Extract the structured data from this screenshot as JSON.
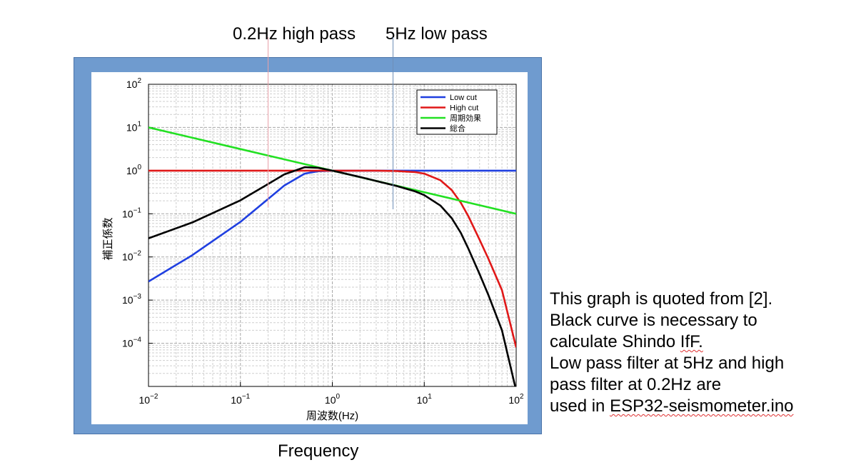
{
  "annotations": {
    "high_pass_label": "0.2Hz high pass",
    "low_pass_label": "5Hz low pass",
    "frequency_label": "Frequency",
    "note": {
      "line1": "This graph is quoted from [2].",
      "line2": "Black curve is necessary to",
      "line3_pre": "calculate Shindo ",
      "line3_err": "IfF.",
      "line4": "Low pass filter at 5Hz and  high",
      "line5": "pass filter at 0.2Hz are",
      "line6_pre": "used in ",
      "line6_err": "ESP32-seismometer.ino"
    },
    "high_pass_freq": 0.2,
    "low_pass_freq": 4.6,
    "high_pass_line_color": "#e8a0a8",
    "low_pass_line_color": "#6f8fb8",
    "frame_color": "#6f9bcf"
  },
  "chart_data": {
    "type": "line",
    "xscale": "log",
    "yscale": "log",
    "xlim": [
      0.01,
      100
    ],
    "ylim": [
      1e-05,
      100
    ],
    "xlabel": "周波数(Hz)",
    "ylabel": "補正係数",
    "grid": true,
    "legend_position": "top-right",
    "x_ticks": [
      {
        "value": 0.01,
        "base": "10",
        "exp": "−2"
      },
      {
        "value": 0.1,
        "base": "10",
        "exp": "−1"
      },
      {
        "value": 1,
        "base": "10",
        "exp": "0"
      },
      {
        "value": 10,
        "base": "10",
        "exp": "1"
      },
      {
        "value": 100,
        "base": "10",
        "exp": "2"
      }
    ],
    "y_ticks": [
      {
        "value": 100,
        "base": "10",
        "exp": "2"
      },
      {
        "value": 10,
        "base": "10",
        "exp": "1"
      },
      {
        "value": 1,
        "base": "10",
        "exp": "0"
      },
      {
        "value": 0.1,
        "base": "10",
        "exp": "−1"
      },
      {
        "value": 0.01,
        "base": "10",
        "exp": "−2"
      },
      {
        "value": 0.001,
        "base": "10",
        "exp": "−3"
      },
      {
        "value": 0.0001,
        "base": "10",
        "exp": "−4"
      }
    ],
    "series": [
      {
        "name": "Low cut",
        "color": "#1f3fe0",
        "x": [
          0.01,
          0.03,
          0.1,
          0.2,
          0.3,
          0.5,
          0.7,
          1,
          2,
          5,
          10,
          30,
          100
        ],
        "y": [
          0.0027,
          0.011,
          0.065,
          0.22,
          0.45,
          0.85,
          0.97,
          1.0,
          1.0,
          1.0,
          1.0,
          1.0,
          1.0
        ]
      },
      {
        "name": "High cut",
        "color": "#e01818",
        "x": [
          0.01,
          1,
          3,
          5,
          8,
          10,
          15,
          20,
          25,
          30,
          40,
          50,
          70,
          100
        ],
        "y": [
          1.0,
          1.0,
          1.0,
          0.98,
          0.92,
          0.85,
          0.6,
          0.35,
          0.18,
          0.09,
          0.025,
          0.009,
          0.0017,
          8e-05
        ]
      },
      {
        "name": "周期効果",
        "color": "#22e022",
        "x": [
          0.01,
          0.1,
          1,
          10,
          100
        ],
        "y": [
          10,
          3.16,
          1.0,
          0.316,
          0.1
        ]
      },
      {
        "name": "総合",
        "color": "#000000",
        "x": [
          0.01,
          0.03,
          0.1,
          0.2,
          0.3,
          0.5,
          0.7,
          1,
          2,
          5,
          8,
          10,
          15,
          20,
          25,
          30,
          40,
          50,
          70,
          100
        ],
        "y": [
          0.027,
          0.063,
          0.205,
          0.49,
          0.82,
          1.2,
          1.16,
          1.0,
          0.71,
          0.44,
          0.33,
          0.27,
          0.155,
          0.078,
          0.036,
          0.016,
          0.004,
          0.0013,
          0.0002,
          8e-06
        ]
      }
    ]
  }
}
